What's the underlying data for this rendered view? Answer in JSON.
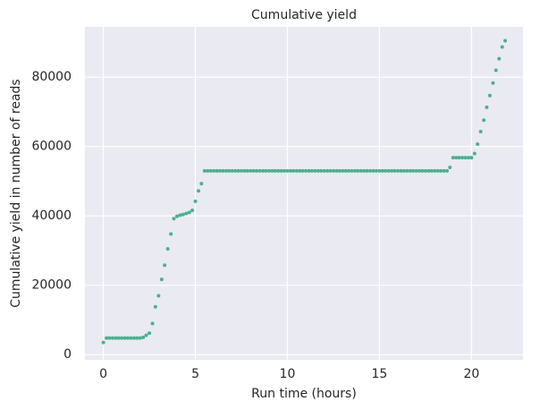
{
  "chart_data": {
    "type": "scatter",
    "title": "Cumulative yield",
    "x_label": "Run time (hours)",
    "y_label": "Cumulative yield in number of reads",
    "x": [
      0,
      0.17,
      0.33,
      0.5,
      0.67,
      0.83,
      1,
      1.17,
      1.33,
      1.5,
      1.67,
      1.83,
      2,
      2.17,
      2.33,
      2.5,
      2.67,
      2.83,
      3,
      3.17,
      3.33,
      3.5,
      3.67,
      3.83,
      4,
      4.17,
      4.33,
      4.5,
      4.67,
      4.83,
      5,
      5.17,
      5.33,
      5.5,
      5.67,
      5.83,
      6,
      6.17,
      6.33,
      6.5,
      6.67,
      6.83,
      7,
      7.17,
      7.33,
      7.5,
      7.67,
      7.83,
      8,
      8.17,
      8.33,
      8.5,
      8.67,
      8.83,
      9,
      9.17,
      9.33,
      9.5,
      9.67,
      9.83,
      10,
      10.17,
      10.33,
      10.5,
      10.67,
      10.83,
      11,
      11.17,
      11.33,
      11.5,
      11.67,
      11.83,
      12,
      12.17,
      12.33,
      12.5,
      12.67,
      12.83,
      13,
      13.17,
      13.33,
      13.5,
      13.67,
      13.83,
      14,
      14.17,
      14.33,
      14.5,
      14.67,
      14.83,
      15,
      15.17,
      15.33,
      15.5,
      15.67,
      15.83,
      16,
      16.17,
      16.33,
      16.5,
      16.67,
      16.83,
      17,
      17.17,
      17.33,
      17.5,
      17.67,
      17.83,
      18,
      18.17,
      18.33,
      18.5,
      18.67,
      18.83,
      19,
      19.17,
      19.33,
      19.5,
      19.67,
      19.83,
      20,
      20.17,
      20.33,
      20.5,
      20.67,
      20.83,
      21,
      21.17,
      21.33,
      21.5,
      21.67,
      21.83
    ],
    "values": [
      3500,
      4800,
      4800,
      4800,
      4800,
      4800,
      4800,
      4800,
      4800,
      4800,
      4800,
      4800,
      4800,
      5000,
      5600,
      6200,
      9000,
      13800,
      17000,
      21700,
      25800,
      30500,
      34800,
      39200,
      39900,
      40200,
      40400,
      40700,
      41000,
      41600,
      44200,
      47200,
      49300,
      53000,
      53000,
      53000,
      53000,
      53000,
      53000,
      53000,
      53000,
      53000,
      53000,
      53000,
      53000,
      53000,
      53000,
      53000,
      53000,
      53000,
      53000,
      53000,
      53000,
      53000,
      53000,
      53000,
      53000,
      53000,
      53000,
      53000,
      53000,
      53000,
      53000,
      53000,
      53000,
      53000,
      53000,
      53000,
      53000,
      53000,
      53000,
      53000,
      53000,
      53000,
      53000,
      53000,
      53000,
      53000,
      53000,
      53000,
      53000,
      53000,
      53000,
      53000,
      53000,
      53000,
      53000,
      53000,
      53000,
      53000,
      53000,
      53000,
      53000,
      53000,
      53000,
      53000,
      53000,
      53000,
      53000,
      53000,
      53000,
      53000,
      53000,
      53000,
      53000,
      53000,
      53000,
      53000,
      53000,
      53000,
      53000,
      53000,
      53000,
      54000,
      56800,
      56800,
      56800,
      56800,
      56800,
      56800,
      56800,
      58000,
      60700,
      64300,
      67600,
      71300,
      74700,
      78300,
      82000,
      85300,
      88700,
      90500
    ],
    "color": "#4bb08e",
    "xlim": [
      -1,
      22.8
    ],
    "ylim": [
      -1500,
      94500
    ],
    "xticks": [
      0,
      5,
      10,
      15,
      20
    ],
    "yticks": [
      0,
      20000,
      40000,
      60000,
      80000
    ],
    "grid": true
  }
}
